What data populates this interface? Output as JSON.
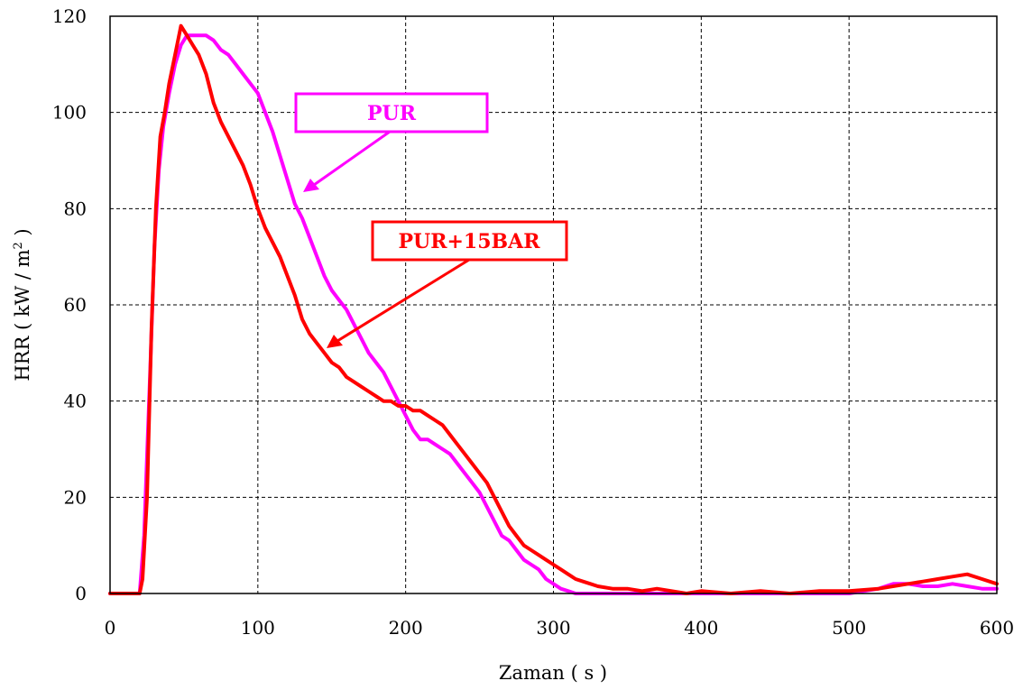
{
  "chart_data": {
    "type": "line",
    "xlabel": "Zaman ( s )",
    "ylabel_prefix": "HRR ( kW / m",
    "ylabel_sup": "2",
    "ylabel_suffix": " )",
    "xlim": [
      0,
      600
    ],
    "ylim": [
      0,
      120
    ],
    "x_ticks": [
      0,
      100,
      200,
      300,
      400,
      500,
      600
    ],
    "y_ticks": [
      0,
      20,
      40,
      60,
      80,
      100,
      120
    ],
    "x_tick_labels": [
      "0",
      "100",
      "200",
      "300",
      "400",
      "500",
      "600"
    ],
    "y_tick_labels": [
      "0",
      "20",
      "40",
      "60",
      "80",
      "100",
      "120"
    ],
    "grid": true,
    "series": [
      {
        "name": "PUR",
        "color": "#ff00ff",
        "x": [
          0,
          20,
          23,
          27,
          30,
          33,
          36,
          40,
          44,
          48,
          52,
          56,
          60,
          65,
          70,
          75,
          80,
          85,
          90,
          95,
          100,
          105,
          110,
          115,
          120,
          125,
          130,
          135,
          140,
          145,
          150,
          155,
          160,
          165,
          170,
          175,
          180,
          185,
          190,
          195,
          200,
          205,
          210,
          215,
          220,
          225,
          230,
          235,
          240,
          245,
          250,
          255,
          260,
          265,
          270,
          275,
          280,
          285,
          290,
          295,
          300,
          305,
          310,
          315,
          320,
          330,
          340,
          360,
          380,
          400,
          420,
          440,
          460,
          480,
          500,
          510,
          520,
          530,
          540,
          550,
          560,
          570,
          580,
          590,
          600
        ],
        "y": [
          0,
          0,
          12,
          45,
          72,
          88,
          97,
          104,
          110,
          114,
          116,
          116,
          116,
          116,
          115,
          113,
          112,
          110,
          108,
          106,
          104,
          100,
          96,
          91,
          86,
          81,
          78,
          74,
          70,
          66,
          63,
          61,
          59,
          56,
          53,
          50,
          48,
          46,
          43,
          40,
          37,
          34,
          32,
          32,
          31,
          30,
          29,
          27,
          25,
          23,
          21,
          18,
          15,
          12,
          11,
          9,
          7,
          6,
          5,
          3,
          2,
          1,
          0.5,
          0,
          0,
          0,
          0,
          0,
          0,
          0,
          0,
          0,
          0,
          0,
          0,
          0.5,
          1,
          2,
          2,
          1.5,
          1.5,
          2,
          1.5,
          1,
          1
        ]
      },
      {
        "name": "PUR+15BAR",
        "color": "#ff0000",
        "x": [
          0,
          20,
          22,
          25,
          28,
          31,
          34,
          37,
          40,
          44,
          48,
          52,
          56,
          60,
          65,
          70,
          75,
          80,
          85,
          90,
          95,
          100,
          105,
          110,
          115,
          120,
          125,
          130,
          135,
          140,
          145,
          150,
          155,
          160,
          165,
          170,
          175,
          180,
          185,
          190,
          195,
          200,
          205,
          210,
          215,
          220,
          225,
          230,
          235,
          240,
          245,
          250,
          255,
          260,
          265,
          270,
          275,
          280,
          285,
          290,
          295,
          300,
          305,
          310,
          315,
          320,
          325,
          330,
          340,
          350,
          360,
          370,
          380,
          390,
          400,
          420,
          440,
          460,
          480,
          500,
          520,
          540,
          550,
          560,
          570,
          580,
          590,
          600
        ],
        "y": [
          0,
          0,
          3,
          20,
          55,
          80,
          95,
          100,
          106,
          112,
          118,
          116,
          114,
          112,
          108,
          102,
          98,
          95,
          92,
          89,
          85,
          80,
          76,
          73,
          70,
          66,
          62,
          57,
          54,
          52,
          50,
          48,
          47,
          45,
          44,
          43,
          42,
          41,
          40,
          40,
          39,
          39,
          38,
          38,
          37,
          36,
          35,
          33,
          31,
          29,
          27,
          25,
          23,
          20,
          17,
          14,
          12,
          10,
          9,
          8,
          7,
          6,
          5,
          4,
          3,
          2.5,
          2,
          1.5,
          1,
          1,
          0.5,
          1,
          0.5,
          0,
          0.5,
          0,
          0.5,
          0,
          0.5,
          0.5,
          1,
          2,
          2.5,
          3,
          3.5,
          4,
          3,
          2
        ]
      }
    ],
    "annotations": [
      {
        "label": "PUR",
        "series": "PUR",
        "color": "#ff00ff"
      },
      {
        "label": "PUR+15BAR",
        "series": "PUR+15BAR",
        "color": "#ff0000"
      }
    ]
  }
}
